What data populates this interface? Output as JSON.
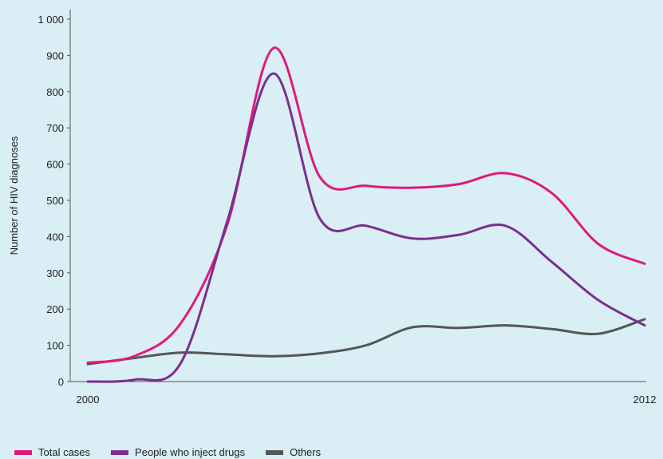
{
  "chart_data": {
    "type": "line",
    "title": "",
    "xlabel": "",
    "ylabel": "Number of HIV diagnoses",
    "xlim": [
      2000,
      2012
    ],
    "ylim": [
      0,
      1000
    ],
    "x_tick_labels": [
      "2000",
      "2012"
    ],
    "y_tick_labels": [
      "0",
      "100",
      "200",
      "300",
      "400",
      "500",
      "600",
      "700",
      "800",
      "900",
      "1 000"
    ],
    "grid": false,
    "legend_position": "bottom-left",
    "series": [
      {
        "name": "Total cases",
        "color": "#e0197d",
        "x": [
          2000,
          2001,
          2002,
          2003,
          2004,
          2005,
          2006,
          2007,
          2008,
          2009,
          2010,
          2011,
          2012
        ],
        "y": [
          52,
          70,
          160,
          430,
          920,
          565,
          540,
          535,
          545,
          575,
          520,
          380,
          325
        ]
      },
      {
        "name": "People who inject drugs",
        "color": "#7b2f8e",
        "x": [
          2000,
          2001,
          2002,
          2003,
          2004,
          2005,
          2006,
          2007,
          2008,
          2009,
          2010,
          2011,
          2012
        ],
        "y": [
          0,
          5,
          50,
          440,
          850,
          450,
          430,
          395,
          405,
          430,
          330,
          225,
          155
        ]
      },
      {
        "name": "Others",
        "color": "#555555",
        "x": [
          2000,
          2001,
          2002,
          2003,
          2004,
          2005,
          2006,
          2007,
          2008,
          2009,
          2010,
          2011,
          2012
        ],
        "y": [
          48,
          65,
          80,
          75,
          70,
          78,
          100,
          150,
          148,
          155,
          145,
          132,
          172
        ]
      }
    ]
  }
}
